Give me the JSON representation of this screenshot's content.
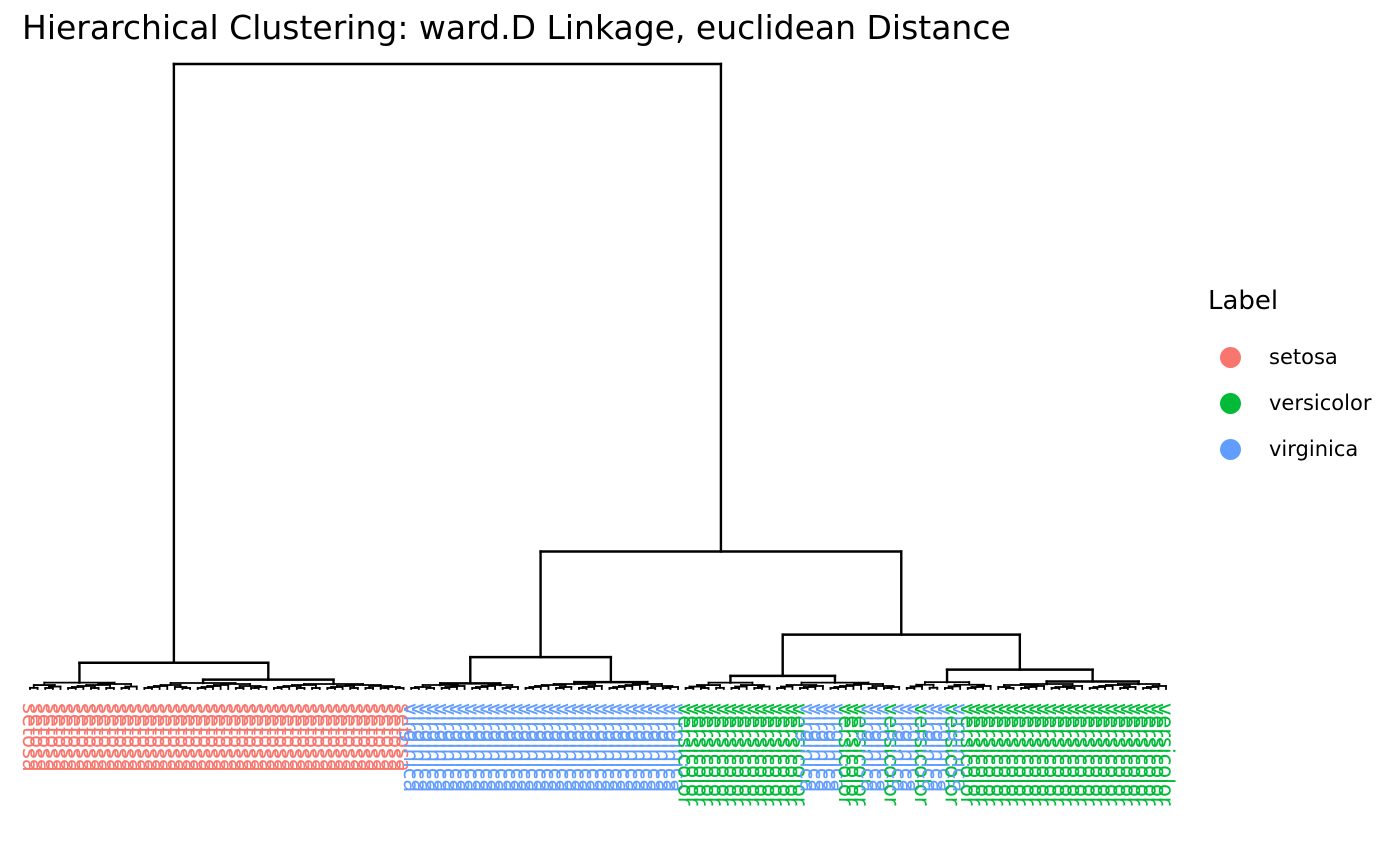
{
  "chart_data": {
    "type": "dendrogram",
    "title": "Hierarchical Clustering: ward.D Linkage, euclidean Distance",
    "legend": {
      "title": "Label",
      "position": "right",
      "entries": [
        {
          "label": "setosa",
          "color": "#F8766D"
        },
        {
          "label": "versicolor",
          "color": "#00BA38"
        },
        {
          "label": "virginica",
          "color": "#619CFF"
        }
      ]
    },
    "leaf_label_orientation": "vertical",
    "leaf_groups": [
      {
        "label": "setosa",
        "count": 50
      },
      {
        "label": "virginica",
        "count": 36
      },
      {
        "label": "versicolor",
        "count": 16
      },
      {
        "label": "virginica",
        "count": 5
      },
      {
        "label": "versicolor",
        "count": 3
      },
      {
        "label": "virginica",
        "count": 3
      },
      {
        "label": "versicolor",
        "count": 1
      },
      {
        "label": "virginica",
        "count": 3
      },
      {
        "label": "versicolor",
        "count": 1
      },
      {
        "label": "virginica",
        "count": 3
      },
      {
        "label": "versicolor",
        "count": 1
      },
      {
        "label": "virginica",
        "count": 1
      },
      {
        "label": "versicolor",
        "count": 27
      }
    ],
    "merges": [
      {
        "id": "root",
        "children": [
          "setosa_cluster",
          "rest"
        ],
        "height": 1.0
      },
      {
        "id": "rest",
        "children": [
          "left2",
          "right2"
        ],
        "height": 0.22
      },
      {
        "id": "right2",
        "children": [
          "r_a",
          "r_b"
        ],
        "height": 0.087
      },
      {
        "id": "r_b",
        "children": [
          "r_b1",
          "r_b2"
        ],
        "height": 0.031
      },
      {
        "id": "setosa_cluster",
        "children": [
          "s1",
          "s2"
        ],
        "height": 0.042
      },
      {
        "id": "left2",
        "children": [
          "l_a",
          "l_b"
        ],
        "height": 0.051
      },
      {
        "id": "r_a",
        "children": [
          "ra1",
          "ra2"
        ],
        "height": 0.021
      },
      {
        "id": "s2",
        "children": [
          "s2a",
          "s2b"
        ],
        "height": 0.015
      },
      {
        "id": "l_b",
        "children": [
          "lb1",
          "lb2"
        ],
        "height": 0.011
      },
      {
        "id": "r_b2",
        "children": [
          "rb2a",
          "rb2b"
        ],
        "height": 0.012
      },
      {
        "id": "l_a",
        "children": [
          "la1",
          "la2"
        ],
        "height": 0.009
      }
    ]
  }
}
